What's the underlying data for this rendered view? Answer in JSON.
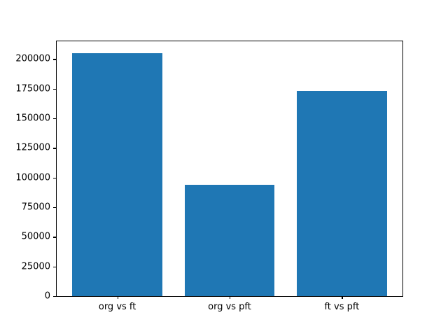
{
  "chart_data": {
    "type": "bar",
    "title": "",
    "xlabel": "",
    "ylabel": "",
    "categories": [
      "org vs ft",
      "org vs pft",
      "ft vs pft"
    ],
    "values": [
      205000,
      94000,
      173000
    ],
    "yticks": [
      0,
      25000,
      50000,
      75000,
      100000,
      125000,
      150000,
      175000,
      200000
    ],
    "ylim": [
      0,
      215000
    ],
    "xlim": [
      -0.54,
      2.54
    ],
    "bar_width": 0.8,
    "grid": false,
    "legend": null,
    "bar_color": "#1f77b4"
  },
  "colors": {
    "background": "#ffffff",
    "spine": "#000000",
    "text": "#000000"
  }
}
